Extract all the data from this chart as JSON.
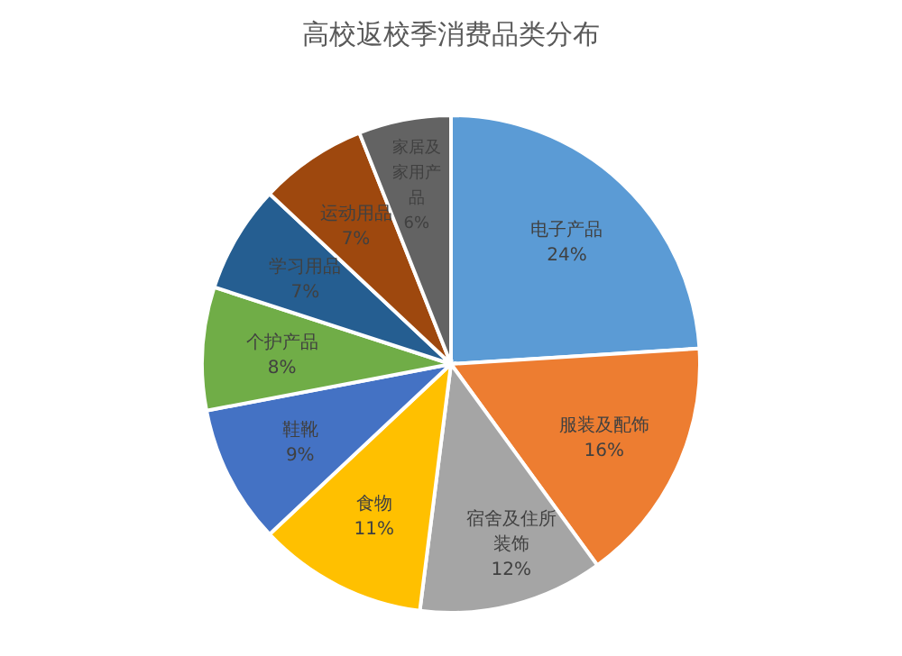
{
  "chart_data": {
    "type": "pie",
    "title": "高校返校季消费品类分布",
    "categories": [
      "电子产品",
      "服装及配饰",
      "宿舍及住所装饰",
      "食物",
      "鞋靴",
      "个护产品",
      "学习用品",
      "运动用品",
      "家居及家用产品"
    ],
    "values": [
      24,
      16,
      12,
      11,
      9,
      8,
      7,
      7,
      6
    ],
    "colors": [
      "#5b9bd5",
      "#ed7d31",
      "#a5a5a5",
      "#ffc000",
      "#4472c4",
      "#70ad47",
      "#255e91",
      "#9e480e",
      "#636363"
    ],
    "value_labels": [
      "24%",
      "16%",
      "12%",
      "11%",
      "9%",
      "8%",
      "7%",
      "7%",
      "6%"
    ]
  }
}
